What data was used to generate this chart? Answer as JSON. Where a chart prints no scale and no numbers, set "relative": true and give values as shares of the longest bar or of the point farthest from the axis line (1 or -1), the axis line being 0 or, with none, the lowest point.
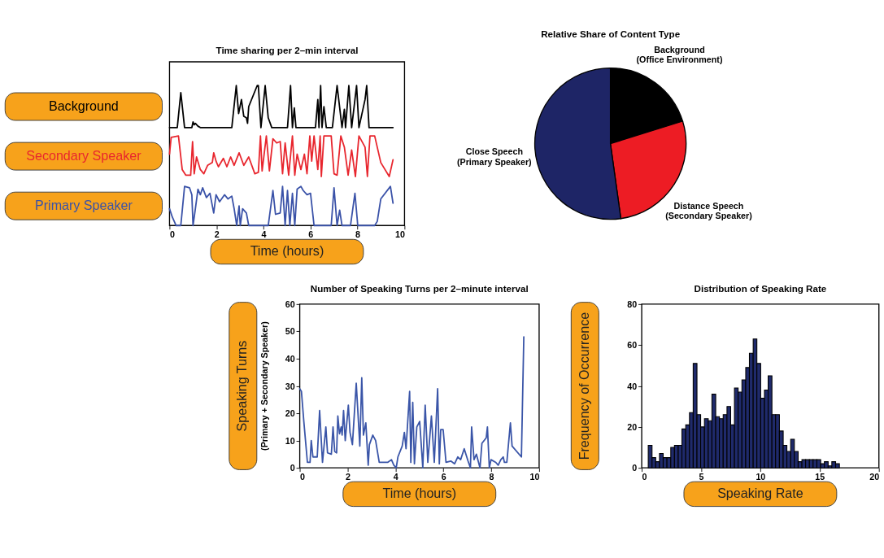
{
  "chart_data": [
    {
      "type": "line",
      "title": "Time sharing per 2–min interval",
      "xlabel": "Time (hours)",
      "relative": true,
      "xlim": [
        0,
        10
      ],
      "xticks": [
        0,
        2,
        4,
        6,
        8,
        10
      ],
      "series": [
        {
          "name": "Background",
          "color": "#000000",
          "x": [
            0,
            0.33,
            0.48,
            0.64,
            0.95,
            1.0,
            1.05,
            1.1,
            1.21,
            1.31,
            2.65,
            2.84,
            2.94,
            3.06,
            3.16,
            3.27,
            3.32,
            3.37,
            3.73,
            3.78,
            3.89,
            4.07,
            4.2,
            4.35,
            5.02,
            5.15,
            5.23,
            5.31,
            5.38,
            6.21,
            6.31,
            6.36,
            6.43,
            6.49,
            6.57,
            6.67,
            6.93,
            7.13,
            7.34,
            7.44,
            7.49,
            7.63,
            7.75,
            7.96,
            8.06,
            8.32,
            8.39,
            8.49,
            8.58,
            9.51
          ],
          "values": [
            0.7,
            0.7,
            0.95,
            0.7,
            0.7,
            0.74,
            0.72,
            0.73,
            0.71,
            0.7,
            0.7,
            1.0,
            0.8,
            0.9,
            0.78,
            0.77,
            0.73,
            0.85,
            1.0,
            1.0,
            0.7,
            1.0,
            0.77,
            0.7,
            0.7,
            1.0,
            0.7,
            0.84,
            0.7,
            0.7,
            0.9,
            0.7,
            1.0,
            0.7,
            0.85,
            0.7,
            0.7,
            1.0,
            0.7,
            0.83,
            0.7,
            1.0,
            0.7,
            1.0,
            0.7,
            0.9,
            1.0,
            0.7,
            0.7,
            0.7
          ]
        },
        {
          "name": "Secondary Speaker",
          "color": "#e8262e",
          "x": [
            0,
            0.07,
            0.38,
            0.54,
            0.69,
            0.9,
            0.98,
            1.05,
            1.15,
            1.31,
            1.46,
            1.62,
            1.82,
            1.88,
            1.98,
            2.08,
            2.29,
            2.44,
            2.6,
            2.75,
            2.96,
            3.16,
            3.37,
            3.63,
            3.78,
            3.87,
            3.94,
            4.12,
            4.25,
            4.4,
            4.56,
            4.71,
            4.81,
            4.92,
            5.07,
            5.23,
            5.33,
            5.43,
            5.59,
            5.74,
            5.85,
            5.97,
            6.05,
            6.15,
            6.31,
            6.41,
            6.46,
            6.57,
            6.88,
            7.0,
            7.13,
            7.29,
            7.44,
            7.6,
            7.75,
            7.91,
            8.06,
            8.32,
            8.42,
            8.53,
            8.73,
            8.99,
            9.35,
            9.51
          ],
          "values": [
            0.51,
            0.63,
            0.64,
            0.4,
            0.36,
            0.36,
            0.6,
            0.37,
            0.49,
            0.4,
            0.37,
            0.43,
            0.45,
            0.52,
            0.46,
            0.42,
            0.48,
            0.42,
            0.49,
            0.43,
            0.52,
            0.43,
            0.49,
            0.37,
            0.38,
            0.64,
            0.39,
            0.64,
            0.39,
            0.62,
            0.59,
            0.6,
            0.37,
            0.59,
            0.36,
            0.64,
            0.36,
            0.51,
            0.4,
            0.51,
            0.37,
            0.64,
            0.46,
            0.64,
            0.4,
            0.64,
            0.35,
            0.64,
            0.64,
            0.37,
            0.36,
            0.64,
            0.56,
            0.36,
            0.54,
            0.35,
            0.64,
            0.56,
            0.35,
            0.64,
            0.64,
            0.45,
            0.35,
            0.47
          ]
        },
        {
          "name": "Primary Speaker",
          "color": "#3a52a8",
          "x": [
            0,
            0.12,
            0.28,
            0.48,
            0.64,
            0.85,
            0.95,
            1.0,
            1.1,
            1.21,
            1.31,
            1.41,
            1.57,
            1.72,
            1.88,
            1.98,
            2.13,
            2.34,
            2.49,
            2.65,
            2.75,
            2.86,
            2.96,
            3.01,
            3.11,
            3.27,
            3.37,
            4.2,
            4.4,
            4.51,
            4.71,
            4.81,
            4.92,
            5.02,
            5.12,
            5.23,
            5.33,
            5.43,
            5.59,
            5.69,
            5.85,
            6.0,
            6.15,
            6.88,
            7.0,
            7.13,
            7.24,
            7.34,
            7.7,
            7.89,
            8.01,
            8.73,
            8.84,
            8.99,
            9.4,
            9.51
          ],
          "values": [
            0.12,
            0.06,
            0,
            0,
            0.28,
            0.27,
            0.22,
            0,
            0.12,
            0.26,
            0.22,
            0.27,
            0.2,
            0.23,
            0.09,
            0.22,
            0.17,
            0.22,
            0.19,
            0.21,
            0.12,
            0,
            0.14,
            0,
            0.12,
            0.09,
            0,
            0,
            0.25,
            0.08,
            0.09,
            0.28,
            0,
            0.25,
            0,
            0.23,
            0,
            0.26,
            0.28,
            0.25,
            0.22,
            0.23,
            0,
            0,
            0.27,
            0,
            0.11,
            0,
            0,
            0.23,
            0,
            0,
            0.03,
            0.19,
            0.28,
            0.16
          ]
        }
      ]
    },
    {
      "type": "pie",
      "title": "Relative Share of Content Type",
      "categories": [
        "Background\n(Office Environment)",
        "Distance Speech\n(Secondary Speaker)",
        "Close Speech\n(Primary Speaker)"
      ],
      "values": [
        20.2,
        27.6,
        52.2
      ],
      "colors": [
        "#000000",
        "#ed1c24",
        "#1e2566"
      ]
    },
    {
      "type": "line",
      "title": "Number of Speaking Turns per 2–minute interval",
      "xlabel": "Time (hours)",
      "ylabel": "Speaking Turns\n(Primary + Secondary Speaker)",
      "xlim": [
        0,
        10
      ],
      "xticks": [
        0,
        2,
        4,
        6,
        8,
        10
      ],
      "ylim": [
        0,
        60
      ],
      "yticks": [
        0,
        10,
        20,
        30,
        40,
        50,
        60
      ],
      "series": [
        {
          "color": "#3a55a8",
          "x": [
            0,
            0.07,
            0.17,
            0.32,
            0.43,
            0.48,
            0.55,
            0.73,
            0.83,
            0.95,
            1.09,
            1.16,
            1.32,
            1.39,
            1.46,
            1.54,
            1.59,
            1.66,
            1.73,
            1.77,
            1.83,
            1.9,
            2.03,
            2.1,
            2.2,
            2.36,
            2.51,
            2.59,
            2.66,
            2.76,
            2.86,
            2.91,
            3.05,
            3.17,
            3.32,
            3.67,
            3.83,
            3.93,
            4.03,
            4.1,
            4.28,
            4.37,
            4.44,
            4.59,
            4.64,
            4.72,
            4.79,
            4.89,
            5.01,
            5.14,
            5.24,
            5.35,
            5.5,
            5.62,
            5.76,
            5.83,
            5.89,
            5.99,
            6.11,
            6.31,
            6.47,
            6.6,
            6.72,
            6.87,
            7.03,
            7.13,
            7.18,
            7.28,
            7.38,
            7.53,
            7.61,
            7.79,
            7.84,
            7.92,
            7.99,
            8.19,
            8.29,
            8.4,
            8.5,
            8.55,
            8.65,
            8.8,
            8.87,
            9.26,
            9.36
          ],
          "values": [
            29,
            28,
            17,
            2,
            2,
            10,
            4,
            4,
            21,
            2,
            15,
            5.5,
            5,
            15,
            6,
            5.5,
            19,
            12.5,
            15,
            12,
            21,
            10,
            23,
            13,
            8.5,
            31,
            8,
            33,
            12,
            16.5,
            1,
            8.5,
            12,
            10,
            2,
            2,
            3,
            1,
            0,
            4,
            8,
            13,
            7,
            28,
            2,
            24,
            1.5,
            15,
            17,
            0,
            23,
            2,
            19,
            2,
            29,
            1.5,
            14,
            14,
            2,
            2.5,
            1.5,
            4,
            3,
            7,
            2.5,
            0,
            15,
            3,
            5,
            0,
            9,
            11,
            15,
            0,
            3,
            2,
            1,
            3,
            4,
            2,
            2,
            16.5,
            8,
            4,
            48
          ]
        }
      ]
    },
    {
      "type": "histogram",
      "title": "Distribution of Speaking Rate",
      "xlabel": "Speaking Rate",
      "ylabel": "Frequency of Occurrence",
      "xlim": [
        0,
        20
      ],
      "xticks": [
        0,
        5,
        10,
        15,
        20
      ],
      "ylim": [
        0,
        80
      ],
      "yticks": [
        0,
        20,
        40,
        60,
        80
      ],
      "color": "#1f2a6b",
      "bins": [
        0.55,
        0.87,
        1.18,
        1.5,
        1.81,
        2.13,
        2.45,
        2.76,
        3.08,
        3.39,
        3.71,
        4.03,
        4.34,
        4.66,
        4.97,
        5.29,
        5.61,
        5.92,
        6.24,
        6.55,
        6.87,
        7.19,
        7.5,
        7.82,
        8.13,
        8.45,
        8.77,
        9.08,
        9.4,
        9.71,
        10.03,
        10.35,
        10.66,
        10.98,
        11.29,
        11.61,
        11.93,
        12.24,
        12.56,
        12.87,
        13.19,
        13.51,
        13.82,
        14.14,
        14.45,
        14.77,
        15.09,
        15.4,
        15.72,
        16.03,
        16.35,
        16.67
      ],
      "values": [
        11,
        5,
        3,
        7,
        5,
        5,
        10,
        11,
        11,
        19,
        21,
        27,
        51,
        26,
        20,
        24,
        23,
        36,
        25,
        24,
        26,
        30,
        21,
        39,
        37,
        43,
        49,
        56,
        63,
        51,
        34,
        38,
        45,
        26,
        26,
        18,
        11,
        8,
        14,
        8,
        3,
        4,
        4,
        4,
        4,
        4,
        2,
        3,
        1,
        3,
        2
      ]
    }
  ]
}
